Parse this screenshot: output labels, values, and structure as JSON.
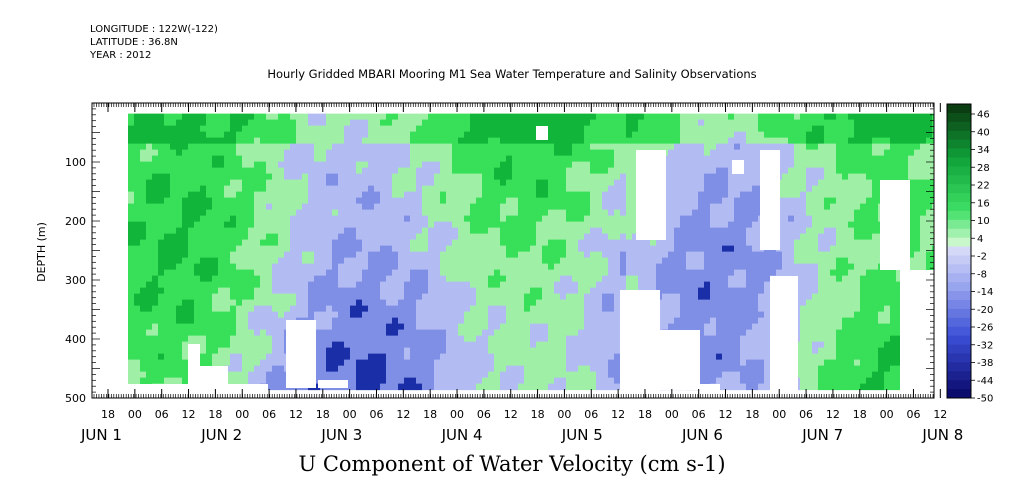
{
  "header": {
    "longitude": "LONGITUDE : 122W(-122)",
    "latitude": "LATITUDE : 36.8N",
    "year": "YEAR : 2012",
    "title": "Hourly Gridded MBARI Mooring M1 Sea Water Temperature and Salinity Observations"
  },
  "bottom_title": "U Component of Water Velocity (cm s-1)",
  "colors": {
    "strong_neg": "#1a2ea8",
    "neg": "#7f8fe6",
    "weak_neg": "#b3bcf2",
    "weak_pos": "#9ff0a6",
    "pos": "#38e05a",
    "strong_pos": "#10b53a",
    "missing": "#ffffff"
  },
  "chart_data": {
    "type": "heatmap",
    "title": "Hourly Gridded MBARI Mooring M1 Sea Water Temperature and Salinity Observations",
    "xlabel": "",
    "ylabel": "DEPTH (m)",
    "ylim": [
      500,
      0
    ],
    "y_ticks": [
      "100",
      "200",
      "300",
      "400",
      "500"
    ],
    "hour_ticks": [
      "18",
      "00",
      "06",
      "12",
      "18",
      "00",
      "06",
      "12",
      "18",
      "00",
      "06",
      "12",
      "18",
      "00",
      "06",
      "12",
      "18",
      "00",
      "06",
      "12",
      "18",
      "00",
      "06",
      "12",
      "18",
      "00",
      "06",
      "12",
      "18",
      "00",
      "06",
      "12"
    ],
    "day_labels": [
      "JUN  1",
      "JUN  2",
      "JUN  3",
      "JUN  4",
      "JUN  5",
      "JUN  6",
      "JUN  7",
      "JUN  8"
    ],
    "colorbar": {
      "label": "U Component of Water Velocity (cm s-1)",
      "tick_labels": [
        "46",
        "40",
        "34",
        "28",
        "22",
        "16",
        "10",
        "4",
        "-2",
        "-8",
        "-14",
        "-20",
        "-26",
        "-32",
        "-38",
        "-44",
        "-50"
      ]
    }
  }
}
